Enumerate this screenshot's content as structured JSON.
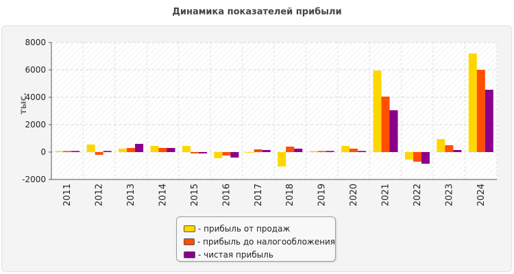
{
  "chart_data": {
    "type": "bar",
    "title": "Динамика показателей прибыли",
    "ylabel": "тыс.",
    "xlabel": "",
    "ylim": [
      -2000,
      8000
    ],
    "yticks": [
      -2000,
      0,
      2000,
      4000,
      6000,
      8000
    ],
    "grid": true,
    "legend_position": "bottom-center",
    "categories": [
      "2011",
      "2012",
      "2013",
      "2014",
      "2015",
      "2016",
      "2017",
      "2018",
      "2019",
      "2020",
      "2021",
      "2022",
      "2023",
      "2024"
    ],
    "series": [
      {
        "name": "- прибыль от продаж",
        "color": "#ffd700",
        "values": [
          80,
          550,
          250,
          450,
          450,
          -450,
          -50,
          -1050,
          80,
          450,
          5950,
          -550,
          950,
          7200
        ]
      },
      {
        "name": "- прибыль до налогообложения",
        "color": "#ff4f00",
        "values": [
          80,
          -200,
          300,
          300,
          -100,
          -250,
          200,
          400,
          80,
          250,
          4050,
          -700,
          500,
          6000
        ]
      },
      {
        "name": "- чистая прибыль",
        "color": "#8b008b",
        "values": [
          80,
          80,
          600,
          300,
          -100,
          -400,
          150,
          250,
          80,
          80,
          3050,
          -850,
          150,
          4550
        ]
      }
    ]
  }
}
